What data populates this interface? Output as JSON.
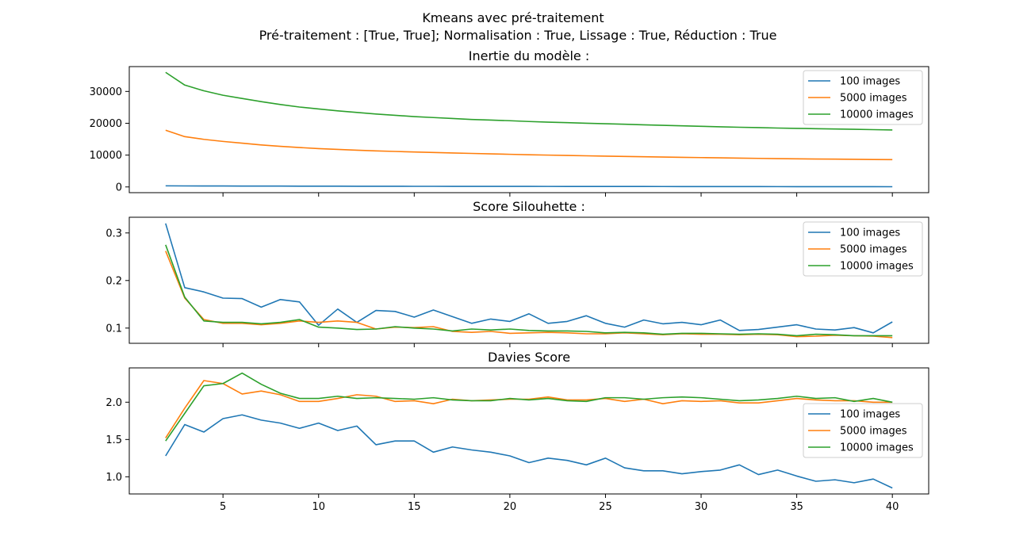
{
  "figure": {
    "title": "Kmeans avec pré-traitement",
    "subtitle": "Pré-traitement : [True, True]; Normalisation : True, Lissage : True, Réduction : True"
  },
  "colors": {
    "100 images": "#1f77b4",
    "5000 images": "#ff7f0e",
    "10000 images": "#2ca02c"
  },
  "chart_data": [
    {
      "type": "line",
      "title": "Inertie du modèle :",
      "x": [
        2,
        3,
        4,
        5,
        6,
        7,
        8,
        9,
        10,
        11,
        12,
        13,
        14,
        15,
        16,
        17,
        18,
        19,
        20,
        21,
        22,
        23,
        24,
        25,
        26,
        27,
        28,
        29,
        30,
        31,
        32,
        33,
        34,
        35,
        36,
        37,
        38,
        39,
        40
      ],
      "xlim": [
        0.1,
        41.9
      ],
      "ylim": [
        -1800,
        37800
      ],
      "yticks": [
        0,
        10000,
        20000,
        30000
      ],
      "legend_position": "top-right",
      "series": [
        {
          "name": "100 images",
          "values": [
            350,
            320,
            300,
            290,
            280,
            270,
            260,
            250,
            240,
            230,
            220,
            210,
            200,
            195,
            190,
            185,
            180,
            175,
            170,
            165,
            160,
            155,
            150,
            145,
            140,
            135,
            130,
            125,
            120,
            115,
            110,
            105,
            100,
            95,
            90,
            85,
            80,
            75,
            70
          ]
        },
        {
          "name": "5000 images",
          "values": [
            17800,
            15800,
            14950,
            14300,
            13750,
            13200,
            12750,
            12380,
            12050,
            11780,
            11550,
            11330,
            11150,
            10980,
            10820,
            10680,
            10530,
            10380,
            10250,
            10120,
            10000,
            9890,
            9780,
            9680,
            9580,
            9480,
            9390,
            9300,
            9220,
            9140,
            9050,
            8970,
            8900,
            8840,
            8780,
            8730,
            8680,
            8620,
            8580
          ]
        },
        {
          "name": "10000 images",
          "values": [
            36000,
            32000,
            30200,
            28800,
            27800,
            26800,
            25900,
            25100,
            24500,
            23900,
            23400,
            22900,
            22500,
            22100,
            21800,
            21500,
            21200,
            21000,
            20800,
            20550,
            20350,
            20200,
            20000,
            19850,
            19700,
            19500,
            19350,
            19200,
            19050,
            18900,
            18750,
            18650,
            18500,
            18400,
            18300,
            18200,
            18100,
            18000,
            17900
          ]
        }
      ]
    },
    {
      "type": "line",
      "title": "Score Silouhette :",
      "x": [
        2,
        3,
        4,
        5,
        6,
        7,
        8,
        9,
        10,
        11,
        12,
        13,
        14,
        15,
        16,
        17,
        18,
        19,
        20,
        21,
        22,
        23,
        24,
        25,
        26,
        27,
        28,
        29,
        30,
        31,
        32,
        33,
        34,
        35,
        36,
        37,
        38,
        39,
        40
      ],
      "xlim": [
        0.1,
        41.9
      ],
      "ylim": [
        0.068,
        0.333
      ],
      "yticks": [
        0.1,
        0.2,
        0.3
      ],
      "legend_position": "top-right",
      "series": [
        {
          "name": "100 images",
          "values": [
            0.32,
            0.185,
            0.176,
            0.163,
            0.162,
            0.144,
            0.16,
            0.155,
            0.106,
            0.14,
            0.112,
            0.137,
            0.135,
            0.123,
            0.138,
            0.124,
            0.11,
            0.119,
            0.114,
            0.13,
            0.11,
            0.114,
            0.126,
            0.11,
            0.102,
            0.117,
            0.109,
            0.112,
            0.107,
            0.117,
            0.095,
            0.097,
            0.102,
            0.107,
            0.098,
            0.096,
            0.101,
            0.09,
            0.113
          ]
        },
        {
          "name": "5000 images",
          "values": [
            0.262,
            0.163,
            0.118,
            0.11,
            0.11,
            0.107,
            0.11,
            0.115,
            0.112,
            0.115,
            0.112,
            0.098,
            0.102,
            0.101,
            0.103,
            0.093,
            0.091,
            0.093,
            0.089,
            0.09,
            0.091,
            0.09,
            0.088,
            0.088,
            0.09,
            0.088,
            0.086,
            0.088,
            0.087,
            0.087,
            0.086,
            0.087,
            0.086,
            0.082,
            0.083,
            0.085,
            0.084,
            0.083,
            0.08
          ]
        },
        {
          "name": "10000 images",
          "values": [
            0.275,
            0.165,
            0.115,
            0.112,
            0.112,
            0.109,
            0.112,
            0.118,
            0.102,
            0.1,
            0.097,
            0.098,
            0.103,
            0.1,
            0.098,
            0.094,
            0.098,
            0.096,
            0.098,
            0.095,
            0.094,
            0.094,
            0.093,
            0.09,
            0.091,
            0.09,
            0.087,
            0.089,
            0.089,
            0.088,
            0.087,
            0.088,
            0.087,
            0.084,
            0.087,
            0.086,
            0.084,
            0.084,
            0.084
          ]
        }
      ]
    },
    {
      "type": "line",
      "title": "Davies Score",
      "x": [
        2,
        3,
        4,
        5,
        6,
        7,
        8,
        9,
        10,
        11,
        12,
        13,
        14,
        15,
        16,
        17,
        18,
        19,
        20,
        21,
        22,
        23,
        24,
        25,
        26,
        27,
        28,
        29,
        30,
        31,
        32,
        33,
        34,
        35,
        36,
        37,
        38,
        39,
        40
      ],
      "xlim": [
        0.1,
        41.9
      ],
      "ylim": [
        0.77,
        2.46
      ],
      "yticks": [
        1.0,
        1.5,
        2.0
      ],
      "legend_position": "center-right",
      "series": [
        {
          "name": "100 images",
          "values": [
            1.28,
            1.7,
            1.6,
            1.78,
            1.83,
            1.76,
            1.72,
            1.65,
            1.72,
            1.62,
            1.68,
            1.43,
            1.48,
            1.48,
            1.33,
            1.4,
            1.36,
            1.33,
            1.28,
            1.19,
            1.25,
            1.22,
            1.16,
            1.25,
            1.12,
            1.08,
            1.08,
            1.04,
            1.07,
            1.09,
            1.16,
            1.03,
            1.09,
            1.01,
            0.94,
            0.96,
            0.92,
            0.97,
            0.85
          ]
        },
        {
          "name": "5000 images",
          "values": [
            1.52,
            1.92,
            2.29,
            2.25,
            2.11,
            2.15,
            2.1,
            2.01,
            2.01,
            2.05,
            2.1,
            2.08,
            2.01,
            2.02,
            1.98,
            2.04,
            2.02,
            2.03,
            2.04,
            2.04,
            2.07,
            2.03,
            2.03,
            2.05,
            2.01,
            2.04,
            1.98,
            2.02,
            2.01,
            2.02,
            1.99,
            1.99,
            2.02,
            2.05,
            2.03,
            2.02,
            2.02,
            2.0,
            2.0
          ]
        },
        {
          "name": "10000 images",
          "values": [
            1.48,
            1.85,
            2.22,
            2.25,
            2.39,
            2.24,
            2.12,
            2.05,
            2.05,
            2.08,
            2.05,
            2.06,
            2.05,
            2.04,
            2.06,
            2.03,
            2.02,
            2.02,
            2.05,
            2.03,
            2.05,
            2.02,
            2.01,
            2.06,
            2.06,
            2.04,
            2.06,
            2.07,
            2.06,
            2.04,
            2.02,
            2.03,
            2.05,
            2.08,
            2.05,
            2.06,
            2.01,
            2.05,
            2.0
          ]
        }
      ]
    }
  ],
  "x_tick_labels": [
    "5",
    "10",
    "15",
    "20",
    "25",
    "30",
    "35",
    "40"
  ]
}
